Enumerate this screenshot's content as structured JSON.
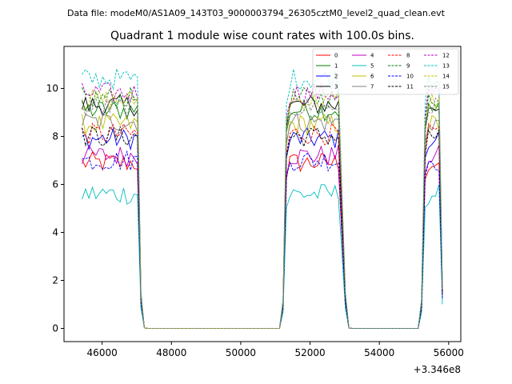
{
  "chart_data": {
    "type": "line",
    "suptitle": "Data file: modeM0/AS1A09_143T03_9000003794_26305cztM0_level2_quad_clean.evt",
    "title": "Quadrant 1 module wise count rates with 100.0s bins.",
    "xlabel": "",
    "ylabel": "",
    "x_offset_label": "+3.346e8",
    "xlim": [
      44900,
      56350
    ],
    "ylim": [
      -0.55,
      11.75
    ],
    "x_ticks": [
      46000,
      48000,
      50000,
      52000,
      54000,
      56000
    ],
    "x_tick_labels": [
      "46000",
      "48000",
      "50000",
      "52000",
      "54000",
      "56000"
    ],
    "y_ticks": [
      0,
      2,
      4,
      6,
      8,
      10
    ],
    "y_tick_labels": [
      "0",
      "2",
      "4",
      "6",
      "8",
      "10"
    ],
    "grid": false,
    "legend_position": "top-right",
    "segments": [
      {
        "start": 45420,
        "end": 47020,
        "step": 100
      },
      {
        "start": 51420,
        "end": 52820,
        "step": 100
      },
      {
        "start": 55420,
        "end": 55720,
        "step": 100
      }
    ],
    "gaps": [
      {
        "from": 47120,
        "to": 51120,
        "ramp_up": [
          51220,
          51320
        ]
      },
      {
        "from": 53020,
        "to": 55120,
        "ramp_up": [
          55220,
          55320
        ]
      }
    ],
    "final_point": 55820,
    "series": [
      {
        "name": "0",
        "color": "#ff0000",
        "dash": "solid",
        "mean": 6.9
      },
      {
        "name": "1",
        "color": "#008000",
        "dash": "solid",
        "mean": 9.1
      },
      {
        "name": "2",
        "color": "#0000ff",
        "dash": "solid",
        "mean": 7.9
      },
      {
        "name": "3",
        "color": "#000000",
        "dash": "solid",
        "mean": 9.3
      },
      {
        "name": "4",
        "color": "#bf00bf",
        "dash": "solid",
        "mean": 7.2
      },
      {
        "name": "5",
        "color": "#00bfbf",
        "dash": "solid",
        "mean": 5.6
      },
      {
        "name": "6",
        "color": "#bfbf00",
        "dash": "solid",
        "mean": 8.5
      },
      {
        "name": "7",
        "color": "#808080",
        "dash": "solid",
        "mean": 8.6
      },
      {
        "name": "8",
        "color": "#ff0000",
        "dash": "dashed",
        "mean": 8.1
      },
      {
        "name": "9",
        "color": "#008000",
        "dash": "dashed",
        "mean": 9.6
      },
      {
        "name": "10",
        "color": "#0000ff",
        "dash": "dashed",
        "mean": 7.0
      },
      {
        "name": "11",
        "color": "#000000",
        "dash": "dashed",
        "mean": 8.0
      },
      {
        "name": "12",
        "color": "#bf00bf",
        "dash": "dashed",
        "mean": 9.8
      },
      {
        "name": "13",
        "color": "#00bfbf",
        "dash": "dashed",
        "mean": 10.4
      },
      {
        "name": "14",
        "color": "#bfbf00",
        "dash": "dashed",
        "mean": 9.5
      },
      {
        "name": "15",
        "color": "#808080",
        "dash": "dashed",
        "mean": 9.2
      }
    ]
  }
}
